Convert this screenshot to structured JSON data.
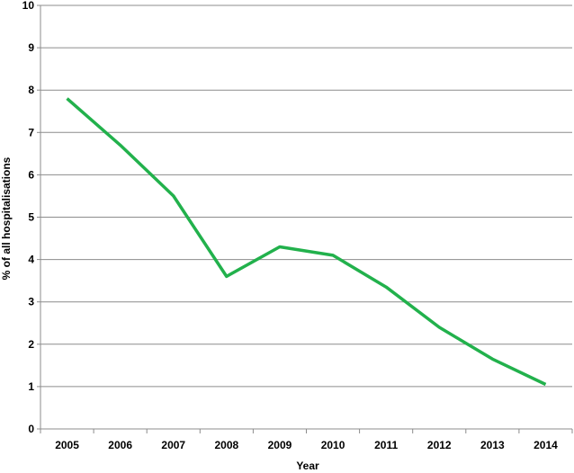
{
  "chart_data": {
    "type": "line",
    "title": "",
    "xlabel": "Year",
    "ylabel": "% of all hospitalisations",
    "categories": [
      "2005",
      "2006",
      "2007",
      "2008",
      "2009",
      "2010",
      "2011",
      "2012",
      "2013",
      "2014"
    ],
    "series": [
      {
        "values": [
          7.8,
          6.7,
          5.5,
          3.6,
          4.3,
          4.1,
          3.35,
          2.4,
          1.65,
          1.05
        ],
        "color": "#22b14c"
      }
    ],
    "ylim": [
      0,
      10
    ],
    "yticks": [
      "0",
      "1",
      "2",
      "3",
      "4",
      "5",
      "6",
      "7",
      "8",
      "9",
      "10"
    ],
    "grid": true,
    "legend": "none",
    "gridColor": "#8c8c8c",
    "axisColor": "#8c8c8c"
  }
}
